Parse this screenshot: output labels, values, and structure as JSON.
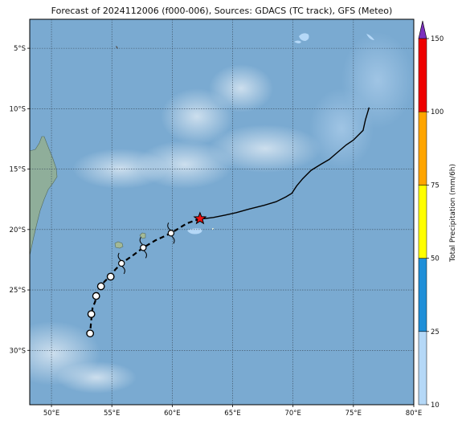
{
  "title": "Forecast of 2024112006 (f000-006), Sources: GDACS (TC track), GFS (Meteo)",
  "map": {
    "extent": {
      "lon": [
        48.2,
        80.0
      ],
      "lat": [
        -34.5,
        -2.6
      ]
    },
    "lon_ticks": [
      {
        "value": 50,
        "label": "50°E"
      },
      {
        "value": 55,
        "label": "55°E"
      },
      {
        "value": 60,
        "label": "60°E"
      },
      {
        "value": 65,
        "label": "65°E"
      },
      {
        "value": 70,
        "label": "70°E"
      },
      {
        "value": 75,
        "label": "75°E"
      },
      {
        "value": 80,
        "label": "80°E"
      }
    ],
    "lat_ticks": [
      {
        "value": -5,
        "label": "5°S"
      },
      {
        "value": -10,
        "label": "10°S"
      },
      {
        "value": -15,
        "label": "15°S"
      },
      {
        "value": -20,
        "label": "20°S"
      },
      {
        "value": -25,
        "label": "25°S"
      },
      {
        "value": -30,
        "label": "30°S"
      }
    ],
    "gridlines": true,
    "ocean_color": "#7aaad1",
    "land_color": "#8fae9a"
  },
  "track_past": {
    "color": "#000000",
    "points": [
      [
        76.3,
        -9.9
      ],
      [
        76.0,
        -10.9
      ],
      [
        75.8,
        -11.8
      ],
      [
        75.5,
        -12.1
      ],
      [
        75.0,
        -12.6
      ],
      [
        74.4,
        -13.0
      ],
      [
        73.7,
        -13.6
      ],
      [
        73.0,
        -14.2
      ],
      [
        72.3,
        -14.6
      ],
      [
        71.5,
        -15.1
      ],
      [
        70.8,
        -15.8
      ],
      [
        70.3,
        -16.4
      ],
      [
        69.9,
        -17.0
      ],
      [
        69.4,
        -17.3
      ],
      [
        68.6,
        -17.7
      ],
      [
        67.6,
        -18.0
      ],
      [
        66.4,
        -18.3
      ],
      [
        65.3,
        -18.6
      ],
      [
        64.4,
        -18.8
      ],
      [
        63.4,
        -19.0
      ],
      [
        62.6,
        -19.1
      ]
    ]
  },
  "track_forecast": {
    "color": "#000000",
    "points": [
      [
        62.3,
        -19.1
      ],
      [
        61.2,
        -19.5
      ],
      [
        59.9,
        -20.3
      ],
      [
        58.6,
        -20.9
      ],
      [
        57.6,
        -21.5
      ],
      [
        56.8,
        -22.1
      ],
      [
        55.8,
        -22.8
      ],
      [
        55.3,
        -23.3
      ],
      [
        54.9,
        -23.8
      ],
      [
        54.4,
        -24.3
      ],
      [
        54.0,
        -24.8
      ],
      [
        53.8,
        -25.3
      ],
      [
        53.6,
        -26.0
      ],
      [
        53.4,
        -26.5
      ],
      [
        53.3,
        -27.4
      ],
      [
        53.2,
        -28.5
      ]
    ]
  },
  "current_position": {
    "lon": 62.3,
    "lat": -19.1,
    "symbol": "red-star",
    "color": "#ee1111"
  },
  "forecast_points": [
    {
      "lon": 59.9,
      "lat": -20.3,
      "symbol": "cyclone"
    },
    {
      "lon": 57.6,
      "lat": -21.5,
      "symbol": "cyclone"
    },
    {
      "lon": 55.8,
      "lat": -22.8,
      "symbol": "cyclone"
    },
    {
      "lon": 54.9,
      "lat": -23.9,
      "symbol": "circle"
    },
    {
      "lon": 54.1,
      "lat": -24.7,
      "symbol": "circle"
    },
    {
      "lon": 53.7,
      "lat": -25.5,
      "symbol": "circle"
    },
    {
      "lon": 53.3,
      "lat": -27.0,
      "symbol": "circle"
    },
    {
      "lon": 53.2,
      "lat": -28.6,
      "symbol": "circle"
    }
  ],
  "colorbar": {
    "label": "Total Precipitation (mm/6h)",
    "levels": [
      10,
      25,
      50,
      75,
      100,
      150
    ],
    "level_labels": [
      "10",
      "25",
      "50",
      "75",
      "100",
      "150"
    ],
    "colors": [
      "#b5d8f7",
      "#1f8fd8",
      "#ffff00",
      "#ffa500",
      "#ee0000"
    ],
    "extend_color": "#7b2fbe"
  }
}
